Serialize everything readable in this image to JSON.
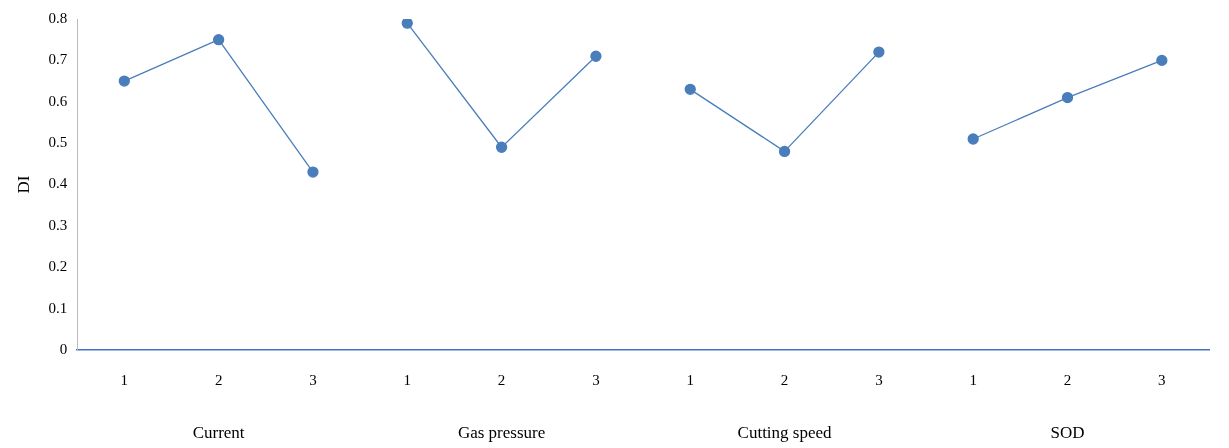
{
  "chart_data": {
    "type": "line",
    "ylabel": "DI",
    "categories": [
      "1",
      "2",
      "3",
      "1",
      "2",
      "3",
      "1",
      "2",
      "3",
      "1",
      "2",
      "3"
    ],
    "series": [
      {
        "color": "#4a7ebb",
        "values": [
          0.65,
          0.75,
          0.43,
          null,
          null,
          null,
          null,
          null,
          null,
          null,
          null,
          null
        ]
      },
      {
        "color": "#4a7ebb",
        "values": [
          null,
          null,
          null,
          0.79,
          0.49,
          0.71,
          null,
          null,
          null,
          null,
          null,
          null
        ]
      },
      {
        "color": "#4a7ebb",
        "values": [
          null,
          null,
          null,
          null,
          null,
          null,
          0.63,
          0.48,
          0.72,
          null,
          null,
          null
        ]
      },
      {
        "color": "#4a7ebb",
        "values": [
          null,
          null,
          null,
          null,
          null,
          null,
          null,
          null,
          null,
          0.51,
          0.61,
          0.7
        ]
      }
    ],
    "annotations": [
      "Current",
      "Gas pressure",
      "Cutting speed",
      "SOD"
    ],
    "ylim": [
      0,
      0.8
    ],
    "yticks": [
      0,
      0.1,
      0.2,
      0.3,
      0.4,
      0.5,
      0.6,
      0.7,
      0.8
    ],
    "grid": false,
    "legend": false,
    "marker": "circle",
    "line_style": "solid"
  }
}
